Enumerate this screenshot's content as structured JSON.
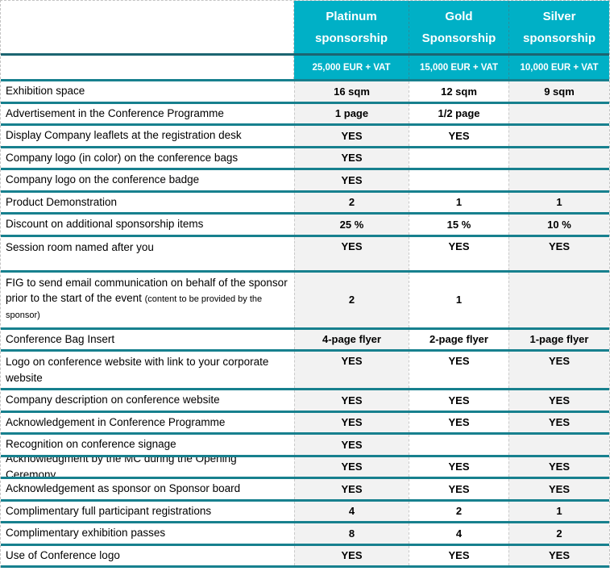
{
  "table": {
    "columns": [
      {
        "name": "Platinum sponsorship",
        "price": "25,000 EUR + VAT"
      },
      {
        "name": "Gold Sponsorship",
        "price": "15,000 EUR + VAT"
      },
      {
        "name": "Silver sponsorship",
        "price": "10,000 EUR + VAT"
      }
    ],
    "rows": [
      {
        "label": "Exhibition space",
        "note": "",
        "values": [
          "16 sqm",
          "12 sqm",
          "9 sqm"
        ],
        "variant": "default"
      },
      {
        "label": "Advertisement in the Conference Programme",
        "note": "",
        "values": [
          "1 page",
          "1/2 page",
          ""
        ],
        "variant": "default"
      },
      {
        "label": "Display Company leaflets at the registration desk",
        "note": "",
        "values": [
          "YES",
          "YES",
          ""
        ],
        "variant": "default"
      },
      {
        "label": "Company logo (in color) on the conference bags",
        "note": "",
        "values": [
          "YES",
          "",
          ""
        ],
        "variant": "default"
      },
      {
        "label": "Company logo  on the conference badge",
        "note": "",
        "values": [
          "YES",
          "",
          ""
        ],
        "variant": "default"
      },
      {
        "label": "Product Demonstration",
        "note": "",
        "values": [
          "2",
          "1",
          "1"
        ],
        "variant": "default"
      },
      {
        "label": "Discount on additional sponsorship items",
        "note": "",
        "values": [
          "25 %",
          "15 %",
          "10 %"
        ],
        "variant": "default"
      },
      {
        "label": "Session room named after you",
        "note": "",
        "values": [
          "YES",
          "YES",
          "YES"
        ],
        "variant": "roomy"
      },
      {
        "label": "FIG to send email communication on behalf of the sponsor prior to the start of the event ",
        "note": "(content to be provided by the sponsor)",
        "values": [
          "2",
          "1",
          ""
        ],
        "variant": "note"
      },
      {
        "label": "Conference Bag Insert",
        "note": "",
        "values": [
          "4-page flyer",
          "2-page flyer",
          "1-page flyer"
        ],
        "variant": "default"
      },
      {
        "label": "Logo on conference website with link to your corporate website",
        "note": "",
        "values": [
          "YES",
          "YES",
          "YES"
        ],
        "variant": "twoline"
      },
      {
        "label": "Company description on conference website",
        "note": "",
        "values": [
          "YES",
          "YES",
          "YES"
        ],
        "variant": "default"
      },
      {
        "label": "Acknowledgement in Conference Programme",
        "note": "",
        "values": [
          "YES",
          "YES",
          "YES"
        ],
        "variant": "default"
      },
      {
        "label": "Recognition on conference signage",
        "note": "",
        "values": [
          "YES",
          "",
          ""
        ],
        "variant": "default"
      },
      {
        "label": "Acknowledgment by the MC during the Opening Ceremony",
        "note": "",
        "values": [
          "YES",
          "YES",
          "YES"
        ],
        "variant": "default"
      },
      {
        "label": "Acknowledgement as sponsor on Sponsor board",
        "note": "",
        "values": [
          "YES",
          "YES",
          "YES"
        ],
        "variant": "default"
      },
      {
        "label": "Complimentary full participant registrations",
        "note": "",
        "values": [
          "4",
          "2",
          "1"
        ],
        "variant": "default"
      },
      {
        "label": "Complimentary exhibition passes",
        "note": "",
        "values": [
          "8",
          "4",
          "2"
        ],
        "variant": "default"
      },
      {
        "label": "Use of Conference logo",
        "note": "",
        "values": [
          "YES",
          "YES",
          "YES"
        ],
        "variant": "default"
      }
    ]
  },
  "colors": {
    "header_teal": "#00b0c6",
    "row_separator_teal": "#17808e",
    "header_separator_dark": "#1c6571",
    "shaded_column_gray": "#f2f2f2",
    "dashed_gridline_gray": "#c3c3c3"
  }
}
